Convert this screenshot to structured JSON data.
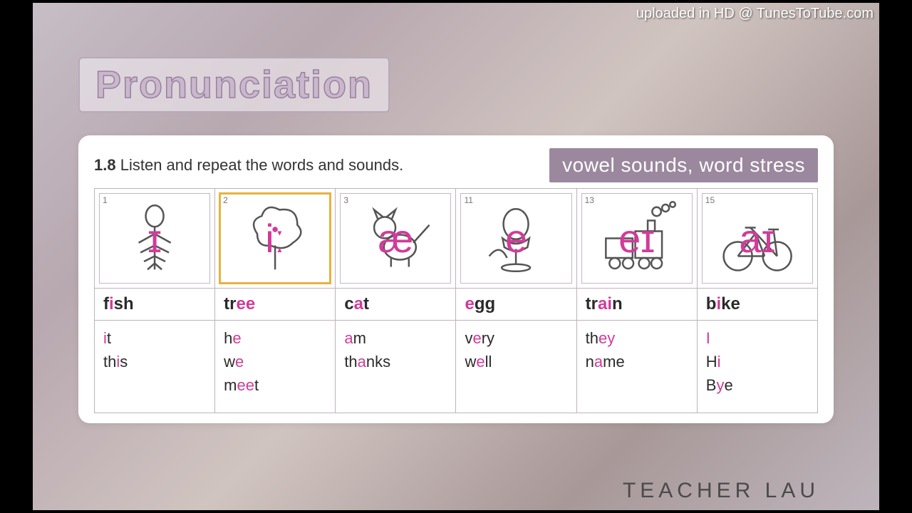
{
  "watermark": "uploaded in HD @ TunesToTube.com",
  "title": "Pronunciation",
  "instruction_number": "1.8",
  "instruction_text": "Listen and repeat the words and sounds.",
  "chip": "vowel sounds, word stress",
  "footer_brand": "TEACHER LAU",
  "colors": {
    "highlight": "#d13b9a",
    "chip_bg": "#9b879e",
    "chip_text": "#ffffff",
    "card_bg": "#ffffff",
    "title_fill": "#c9b8cc",
    "title_stroke": "#9a7fa0",
    "table_border": "#bdb3bd",
    "pic_highlight_border": "#e6b33d",
    "text": "#2a2a2a",
    "sketch_stroke": "#555555"
  },
  "typography": {
    "title_fontsize": 54,
    "chip_fontsize": 28,
    "instruction_fontsize": 22,
    "word_fontsize": 24,
    "example_fontsize": 22,
    "symbol_fontsize": 56,
    "footer_fontsize": 30,
    "footer_letter_spacing": 6
  },
  "columns": [
    {
      "pic_number": "1",
      "symbol": "ɪ",
      "sketch": "fish",
      "highlight": false,
      "word_parts": [
        {
          "t": "f",
          "hl": false
        },
        {
          "t": "i",
          "hl": true
        },
        {
          "t": "sh",
          "hl": false
        }
      ],
      "examples": [
        [
          {
            "t": "i",
            "hl": true
          },
          {
            "t": "t",
            "hl": false
          }
        ],
        [
          {
            "t": "th",
            "hl": false
          },
          {
            "t": "i",
            "hl": true
          },
          {
            "t": "s",
            "hl": false
          }
        ]
      ]
    },
    {
      "pic_number": "2",
      "symbol": "iː",
      "sketch": "tree",
      "highlight": true,
      "word_parts": [
        {
          "t": "tr",
          "hl": false
        },
        {
          "t": "ee",
          "hl": true
        }
      ],
      "examples": [
        [
          {
            "t": "h",
            "hl": false
          },
          {
            "t": "e",
            "hl": true
          }
        ],
        [
          {
            "t": "w",
            "hl": false
          },
          {
            "t": "e",
            "hl": true
          }
        ],
        [
          {
            "t": "m",
            "hl": false
          },
          {
            "t": "ee",
            "hl": true
          },
          {
            "t": "t",
            "hl": false
          }
        ]
      ]
    },
    {
      "pic_number": "3",
      "symbol": "æ",
      "sketch": "cat",
      "highlight": false,
      "word_parts": [
        {
          "t": "c",
          "hl": false
        },
        {
          "t": "a",
          "hl": true
        },
        {
          "t": "t",
          "hl": false
        }
      ],
      "examples": [
        [
          {
            "t": "a",
            "hl": true
          },
          {
            "t": "m",
            "hl": false
          }
        ],
        [
          {
            "t": "th",
            "hl": false
          },
          {
            "t": "a",
            "hl": true
          },
          {
            "t": "nks",
            "hl": false
          }
        ]
      ]
    },
    {
      "pic_number": "11",
      "symbol": "e",
      "sketch": "egg",
      "highlight": false,
      "word_parts": [
        {
          "t": "e",
          "hl": true
        },
        {
          "t": "gg",
          "hl": false
        }
      ],
      "examples": [
        [
          {
            "t": "v",
            "hl": false
          },
          {
            "t": "e",
            "hl": true
          },
          {
            "t": "ry",
            "hl": false
          }
        ],
        [
          {
            "t": "w",
            "hl": false
          },
          {
            "t": "e",
            "hl": true
          },
          {
            "t": "ll",
            "hl": false
          }
        ]
      ]
    },
    {
      "pic_number": "13",
      "symbol": "eɪ",
      "sketch": "train",
      "highlight": false,
      "word_parts": [
        {
          "t": "tr",
          "hl": false
        },
        {
          "t": "ai",
          "hl": true
        },
        {
          "t": "n",
          "hl": false
        }
      ],
      "examples": [
        [
          {
            "t": "th",
            "hl": false
          },
          {
            "t": "ey",
            "hl": true
          }
        ],
        [
          {
            "t": "n",
            "hl": false
          },
          {
            "t": "a",
            "hl": true
          },
          {
            "t": "me",
            "hl": false
          }
        ]
      ]
    },
    {
      "pic_number": "15",
      "symbol": "aɪ",
      "sketch": "bike",
      "highlight": false,
      "word_parts": [
        {
          "t": "b",
          "hl": false
        },
        {
          "t": "i",
          "hl": true
        },
        {
          "t": "ke",
          "hl": false
        }
      ],
      "examples": [
        [
          {
            "t": "I",
            "hl": true
          }
        ],
        [
          {
            "t": "H",
            "hl": false
          },
          {
            "t": "i",
            "hl": true
          }
        ],
        [
          {
            "t": "B",
            "hl": false
          },
          {
            "t": "y",
            "hl": true
          },
          {
            "t": "e",
            "hl": false
          }
        ]
      ]
    }
  ]
}
